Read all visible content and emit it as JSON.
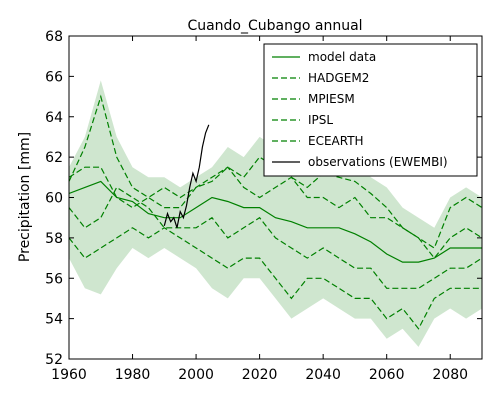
{
  "chart_data": {
    "type": "line",
    "title": "Cuando_Cubango annual",
    "xlabel": "",
    "ylabel": "Precipitation [mm]",
    "xlim": [
      1960,
      2090
    ],
    "ylim": [
      52,
      68
    ],
    "x_ticks": [
      1960,
      1980,
      2000,
      2020,
      2040,
      2060,
      2080
    ],
    "y_ticks": [
      52,
      54,
      56,
      58,
      60,
      62,
      64,
      66,
      68
    ],
    "grid": false,
    "legend_position": "top-right",
    "colors": {
      "model": "#008000",
      "band": "#cfe6cf",
      "observations": "#000000"
    },
    "legend": [
      {
        "label": "model data",
        "style": "solid",
        "color": "#008000"
      },
      {
        "label": "HADGEM2",
        "style": "dashed",
        "color": "#008000"
      },
      {
        "label": "MPIESM",
        "style": "dashed",
        "color": "#008000"
      },
      {
        "label": "IPSL",
        "style": "dashed",
        "color": "#008000"
      },
      {
        "label": "ECEARTH",
        "style": "dashed",
        "color": "#008000"
      },
      {
        "label": "observations (EWEMBI)",
        "style": "solid",
        "color": "#000000"
      }
    ],
    "envelope": {
      "x": [
        1960,
        1965,
        1970,
        1975,
        1980,
        1985,
        1990,
        1995,
        2000,
        2005,
        2010,
        2015,
        2020,
        2025,
        2030,
        2035,
        2040,
        2045,
        2050,
        2055,
        2060,
        2065,
        2070,
        2075,
        2080,
        2085,
        2090
      ],
      "upper": [
        61.5,
        63.0,
        65.8,
        63.0,
        61.5,
        61.0,
        61.0,
        60.5,
        61.0,
        61.5,
        62.5,
        62.0,
        63.0,
        62.5,
        62.0,
        61.5,
        62.0,
        62.0,
        62.0,
        61.0,
        60.5,
        59.5,
        59.0,
        58.5,
        60.0,
        60.5,
        60.0
      ],
      "lower": [
        57.0,
        55.5,
        55.2,
        56.5,
        57.5,
        57.0,
        57.5,
        57.0,
        56.5,
        55.5,
        55.0,
        56.0,
        56.0,
        55.0,
        54.0,
        54.5,
        55.0,
        54.5,
        54.0,
        54.0,
        53.0,
        53.5,
        52.6,
        54.0,
        54.5,
        54.0,
        54.5
      ]
    },
    "series": [
      {
        "name": "model data",
        "style": "solid",
        "x": [
          1960,
          1965,
          1970,
          1975,
          1980,
          1985,
          1990,
          1995,
          2000,
          2005,
          2010,
          2015,
          2020,
          2025,
          2030,
          2035,
          2040,
          2045,
          2050,
          2055,
          2060,
          2065,
          2070,
          2075,
          2080,
          2085,
          2090
        ],
        "y": [
          60.2,
          60.5,
          60.8,
          60.0,
          59.8,
          59.2,
          59.0,
          59.0,
          59.5,
          60.0,
          59.8,
          59.5,
          59.5,
          59.0,
          58.8,
          58.5,
          58.5,
          58.5,
          58.2,
          57.8,
          57.2,
          56.8,
          56.8,
          57.0,
          57.5,
          57.5,
          57.5
        ]
      },
      {
        "name": "HADGEM2",
        "style": "dashed",
        "x": [
          1960,
          1965,
          1970,
          1975,
          1980,
          1985,
          1990,
          1995,
          2000,
          2005,
          2010,
          2015,
          2020,
          2025,
          2030,
          2035,
          2040,
          2045,
          2050,
          2055,
          2060,
          2065,
          2070,
          2075,
          2080,
          2085,
          2090
        ],
        "y": [
          60.8,
          62.5,
          65.0,
          62.0,
          60.5,
          60.0,
          59.5,
          59.5,
          60.5,
          60.8,
          61.5,
          61.0,
          62.0,
          61.5,
          61.0,
          60.5,
          61.2,
          61.0,
          60.8,
          60.2,
          59.5,
          58.5,
          58.0,
          57.5,
          59.5,
          60.0,
          59.5
        ]
      },
      {
        "name": "MPIESM",
        "style": "dashed",
        "x": [
          1960,
          1965,
          1970,
          1975,
          1980,
          1985,
          1990,
          1995,
          2000,
          2005,
          2010,
          2015,
          2020,
          2025,
          2030,
          2035,
          2040,
          2045,
          2050,
          2055,
          2060,
          2065,
          2070,
          2075,
          2080,
          2085,
          2090
        ],
        "y": [
          59.5,
          58.5,
          59.0,
          60.5,
          60.0,
          59.5,
          58.5,
          58.5,
          58.5,
          59.0,
          58.0,
          58.5,
          59.0,
          58.0,
          57.5,
          57.0,
          57.5,
          57.0,
          56.5,
          56.5,
          55.5,
          55.5,
          55.5,
          56.0,
          56.5,
          56.5,
          57.0
        ]
      },
      {
        "name": "IPSL",
        "style": "dashed",
        "x": [
          1960,
          1965,
          1970,
          1975,
          1980,
          1985,
          1990,
          1995,
          2000,
          2005,
          2010,
          2015,
          2020,
          2025,
          2030,
          2035,
          2040,
          2045,
          2050,
          2055,
          2060,
          2065,
          2070,
          2075,
          2080,
          2085,
          2090
        ],
        "y": [
          61.0,
          61.5,
          61.5,
          60.0,
          59.5,
          60.0,
          60.5,
          60.0,
          60.5,
          61.0,
          61.5,
          60.5,
          60.0,
          60.5,
          61.0,
          60.0,
          60.0,
          59.5,
          60.0,
          59.0,
          59.0,
          58.5,
          58.0,
          57.0,
          58.0,
          58.5,
          58.0
        ]
      },
      {
        "name": "ECEARTH",
        "style": "dashed",
        "x": [
          1960,
          1965,
          1970,
          1975,
          1980,
          1985,
          1990,
          1995,
          2000,
          2005,
          2010,
          2015,
          2020,
          2025,
          2030,
          2035,
          2040,
          2045,
          2050,
          2055,
          2060,
          2065,
          2070,
          2075,
          2080,
          2085,
          2090
        ],
        "y": [
          58.0,
          57.0,
          57.5,
          58.0,
          58.5,
          58.0,
          58.5,
          58.0,
          57.5,
          57.0,
          56.5,
          57.0,
          57.0,
          56.0,
          55.0,
          56.0,
          56.0,
          55.5,
          55.0,
          55.0,
          54.0,
          54.5,
          53.5,
          55.0,
          55.5,
          55.5,
          55.5
        ]
      },
      {
        "name": "observations (EWEMBI)",
        "style": "solid",
        "x": [
          1990,
          1991,
          1992,
          1993,
          1994,
          1995,
          1996,
          1997,
          1998,
          1999,
          2000,
          2001,
          2002,
          2003,
          2004
        ],
        "y": [
          58.6,
          59.2,
          58.8,
          59.0,
          58.5,
          59.3,
          59.0,
          59.6,
          60.5,
          61.2,
          60.8,
          61.5,
          62.5,
          63.2,
          63.6
        ]
      }
    ]
  }
}
